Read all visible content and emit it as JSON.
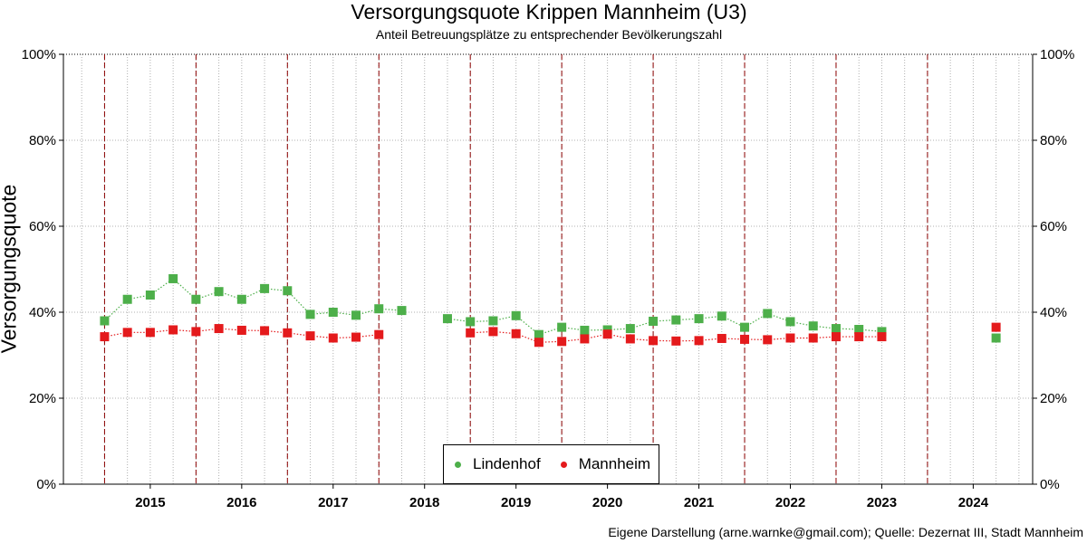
{
  "chart_data": {
    "type": "scatter",
    "title": "Versorgungsquote Krippen Mannheim (U3)",
    "subtitle": "Anteil Betreuungsplätze zu entsprechender Bevölkerungszahl",
    "ylabel": "Versorgungsquote",
    "caption": "Eigene Darstellung (arne.warnke@gmail.com); Quelle: Dezernat III, Stadt Mannheim",
    "ylim": [
      0,
      100
    ],
    "y_ticks": [
      "0%",
      "20%",
      "40%",
      "60%",
      "80%",
      "100%"
    ],
    "y_tick_values": [
      0,
      20,
      40,
      60,
      80,
      100
    ],
    "x_ticks": [
      "2015",
      "2016",
      "2017",
      "2018",
      "2019",
      "2020",
      "2021",
      "2022",
      "2023",
      "2024"
    ],
    "x_tick_values": [
      2015,
      2016,
      2017,
      2018,
      2019,
      2020,
      2021,
      2022,
      2023,
      2024
    ],
    "xlim": [
      2014.05,
      2024.65
    ],
    "vertical_markers": [
      2014.5,
      2015.5,
      2016.5,
      2017.5,
      2018.5,
      2019.5,
      2020.5,
      2021.5,
      2022.5,
      2023.5
    ],
    "grid": true,
    "legend_position": "bottom-center",
    "series": [
      {
        "name": "Lindenhof",
        "color": "#4daf4a",
        "x": [
          2014.5,
          2014.75,
          2015.0,
          2015.25,
          2015.5,
          2015.75,
          2016.0,
          2016.25,
          2016.5,
          2016.75,
          2017.0,
          2017.25,
          2017.5,
          2017.75,
          2018.25,
          2018.5,
          2018.75,
          2019.0,
          2019.25,
          2019.5,
          2019.75,
          2020.0,
          2020.25,
          2020.5,
          2020.75,
          2021.0,
          2021.25,
          2021.5,
          2021.75,
          2022.0,
          2022.25,
          2022.5,
          2022.75,
          2023.0,
          2024.25
        ],
        "values": [
          38.0,
          43.0,
          44.0,
          47.8,
          43.0,
          44.8,
          43.0,
          45.5,
          45.0,
          39.5,
          40.0,
          39.3,
          40.8,
          40.4,
          38.5,
          37.8,
          38.0,
          39.2,
          34.8,
          36.5,
          35.8,
          35.9,
          36.2,
          37.9,
          38.2,
          38.5,
          39.1,
          36.5,
          39.7,
          37.8,
          36.8,
          36.2,
          36.0,
          35.5,
          34.0
        ]
      },
      {
        "name": "Mannheim",
        "color": "#e41a1c",
        "x": [
          2014.5,
          2014.75,
          2015.0,
          2015.25,
          2015.5,
          2015.75,
          2016.0,
          2016.25,
          2016.5,
          2016.75,
          2017.0,
          2017.25,
          2017.5,
          2018.5,
          2018.75,
          2019.0,
          2019.25,
          2019.5,
          2019.75,
          2020.0,
          2020.25,
          2020.5,
          2020.75,
          2021.0,
          2021.25,
          2021.5,
          2021.75,
          2022.0,
          2022.25,
          2022.5,
          2022.75,
          2023.0,
          2024.25
        ],
        "values": [
          34.3,
          35.3,
          35.3,
          35.9,
          35.5,
          36.2,
          35.8,
          35.7,
          35.2,
          34.5,
          34.0,
          34.2,
          34.8,
          35.2,
          35.5,
          35.0,
          33.0,
          33.2,
          33.8,
          34.9,
          33.8,
          33.4,
          33.3,
          33.4,
          33.9,
          33.7,
          33.6,
          34.0,
          34.0,
          34.3,
          34.3,
          34.3,
          36.5
        ]
      }
    ]
  }
}
